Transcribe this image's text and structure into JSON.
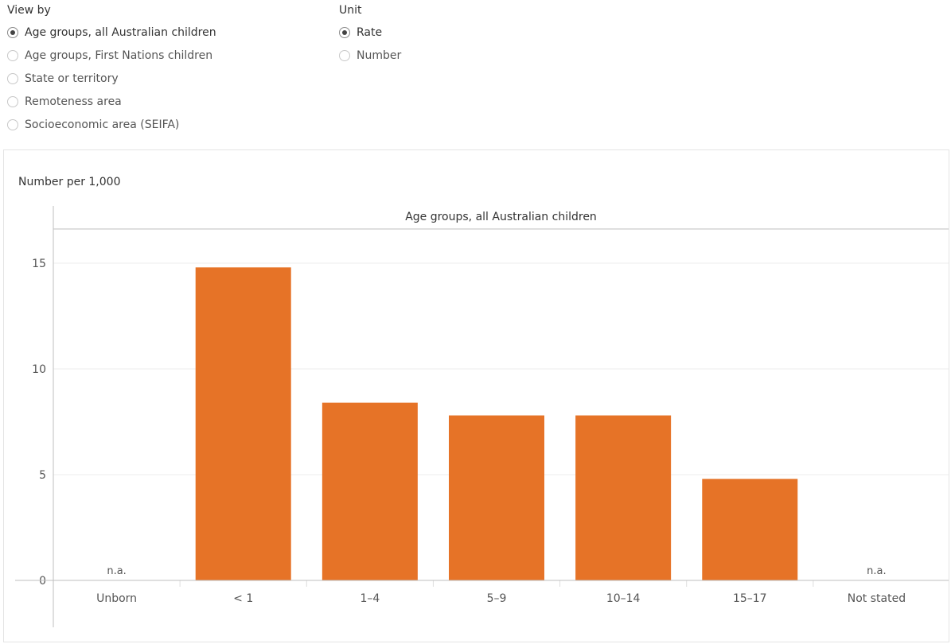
{
  "view_by": {
    "title": "View by",
    "options": [
      {
        "label": "Age groups, all Australian children",
        "selected": true
      },
      {
        "label": "Age groups, First Nations children",
        "selected": false
      },
      {
        "label": "State or territory",
        "selected": false
      },
      {
        "label": "Remoteness area",
        "selected": false
      },
      {
        "label": "Socioeconomic area (SEIFA)",
        "selected": false
      }
    ]
  },
  "unit": {
    "title": "Unit",
    "options": [
      {
        "label": "Rate",
        "selected": true
      },
      {
        "label": "Number",
        "selected": false
      }
    ]
  },
  "colors": {
    "bar": "#e67327",
    "grid": "#eeeeee",
    "axis": "#bfbfbf",
    "text": "#555555"
  },
  "chart_data": {
    "type": "bar",
    "ylabel": "Number per 1,000",
    "panel_title": "Age groups, all Australian children",
    "categories": [
      "Unborn",
      "< 1",
      "1–4",
      "5–9",
      "10–14",
      "15–17",
      "Not stated"
    ],
    "values": [
      null,
      14.8,
      8.4,
      7.8,
      7.8,
      4.8,
      null
    ],
    "value_labels": [
      "n.a.",
      "",
      "",
      "",
      "",
      "",
      "n.a."
    ],
    "yticks": [
      0,
      5,
      10,
      15
    ],
    "ylim": [
      0,
      16.5
    ],
    "grid": true
  }
}
